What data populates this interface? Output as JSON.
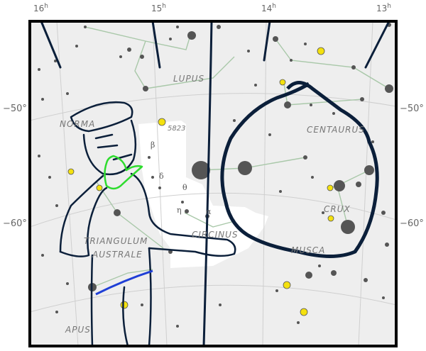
{
  "ra_labels": [
    {
      "h": "16",
      "unit": "h"
    },
    {
      "h": "15",
      "unit": "h"
    },
    {
      "h": "14",
      "unit": "h"
    },
    {
      "h": "13",
      "unit": "h"
    }
  ],
  "dec_labels": [
    "−50°",
    "−60°"
  ],
  "constellations": {
    "lupus": "LUPUS",
    "norma": "NORMA",
    "centaurus": "CENTAURUS",
    "crux": "CRUX",
    "circinus": "CIRCINUS",
    "triangulum_line1": "TRIANGULUM",
    "triangulum_line2": "AUSTRALE",
    "musca": "MUSCA",
    "apus": "APUS"
  },
  "object_label": "5823",
  "greek": {
    "beta": "β",
    "gamma": "γ",
    "delta": "δ",
    "theta": "θ",
    "eta": "η",
    "alpha": "α"
  },
  "colors": {
    "sky": "#eeeeee",
    "map_frame": "#000000",
    "milky_way": "#ffffff",
    "star": "#555555",
    "cluster": "#f4e10e",
    "drawing": "#0b1f3a",
    "blue_stroke": "#1f3fd6",
    "green_stroke": "#2edc2e",
    "constellation_line": "#a9c8a9"
  }
}
